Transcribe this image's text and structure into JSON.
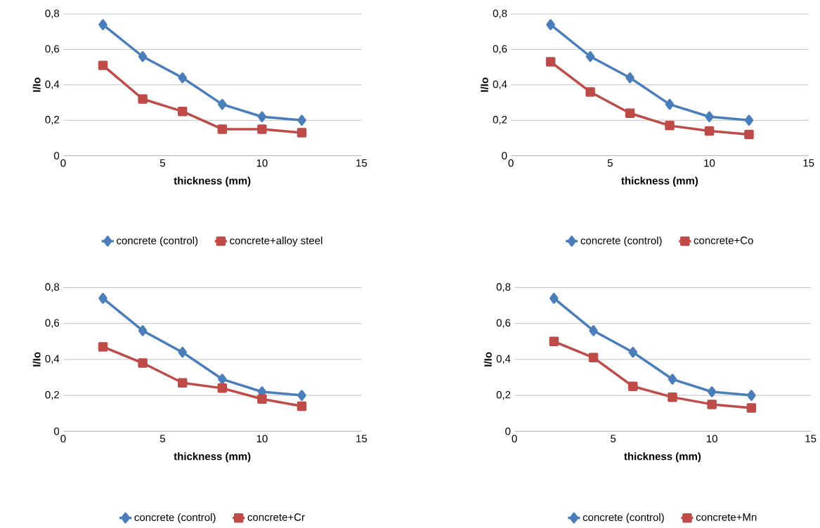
{
  "chart_data": [
    {
      "type": "line",
      "xlabel": "thickness (mm)",
      "ylabel": "I/Io",
      "x": [
        2,
        4,
        6,
        8,
        10,
        12
      ],
      "xlim": [
        0,
        15
      ],
      "xticks": [
        0,
        5,
        10,
        15
      ],
      "ylim": [
        0,
        0.8
      ],
      "yticks": [
        0,
        {
          "value": 0.2,
          "label": "0,2"
        },
        {
          "value": 0.4,
          "label": "0,4"
        },
        {
          "value": 0.6,
          "label": "0,6"
        },
        {
          "value": 0.8,
          "label": "0,8"
        }
      ],
      "grid": "y",
      "legend": "bottom",
      "series": [
        {
          "name": "concrete (control)",
          "color": "#4a7ebb",
          "marker": "diamond",
          "values": [
            0.74,
            0.56,
            0.44,
            0.29,
            0.22,
            0.2
          ]
        },
        {
          "name": "concrete+alloy steel",
          "color": "#be4b48",
          "marker": "square",
          "values": [
            0.51,
            0.32,
            0.25,
            0.15,
            0.15,
            0.13
          ]
        }
      ]
    },
    {
      "type": "line",
      "xlabel": "thickness (mm)",
      "ylabel": "I/Io",
      "x": [
        2,
        4,
        6,
        8,
        10,
        12
      ],
      "xlim": [
        0,
        15
      ],
      "xticks": [
        0,
        5,
        10,
        15
      ],
      "ylim": [
        0,
        0.8
      ],
      "yticks": [
        0,
        {
          "value": 0.2,
          "label": "0,2"
        },
        {
          "value": 0.4,
          "label": "0,4"
        },
        {
          "value": 0.6,
          "label": "0,6"
        },
        {
          "value": 0.8,
          "label": "0,8"
        }
      ],
      "grid": "y",
      "legend": "bottom",
      "series": [
        {
          "name": "concrete (control)",
          "color": "#4a7ebb",
          "marker": "diamond",
          "values": [
            0.74,
            0.56,
            0.44,
            0.29,
            0.22,
            0.2
          ]
        },
        {
          "name": "concrete+Co",
          "color": "#be4b48",
          "marker": "square",
          "values": [
            0.53,
            0.36,
            0.24,
            0.17,
            0.14,
            0.12
          ]
        }
      ]
    },
    {
      "type": "line",
      "xlabel": "thickness (mm)",
      "ylabel": "I/Io",
      "x": [
        2,
        4,
        6,
        8,
        10,
        12
      ],
      "xlim": [
        0,
        15
      ],
      "xticks": [
        0,
        5,
        10,
        15
      ],
      "ylim": [
        0,
        0.8
      ],
      "yticks": [
        0,
        {
          "value": 0.2,
          "label": "0,2"
        },
        {
          "value": 0.4,
          "label": "0,4"
        },
        {
          "value": 0.6,
          "label": "0,6"
        },
        {
          "value": 0.8,
          "label": "0,8"
        }
      ],
      "grid": "y",
      "legend": "bottom",
      "series": [
        {
          "name": "concrete (control)",
          "color": "#4a7ebb",
          "marker": "diamond",
          "values": [
            0.74,
            0.56,
            0.44,
            0.29,
            0.22,
            0.2
          ]
        },
        {
          "name": "concrete+Cr",
          "color": "#be4b48",
          "marker": "square",
          "values": [
            0.47,
            0.38,
            0.27,
            0.24,
            0.18,
            0.14
          ]
        }
      ]
    },
    {
      "type": "line",
      "xlabel": "thickness (mm)",
      "ylabel": "I/Io",
      "x": [
        2,
        4,
        6,
        8,
        10,
        12
      ],
      "xlim": [
        0,
        15
      ],
      "xticks": [
        0,
        5,
        10,
        15
      ],
      "ylim": [
        0,
        0.8
      ],
      "yticks": [
        0,
        {
          "value": 0.2,
          "label": "0,2"
        },
        {
          "value": 0.4,
          "label": "0,4"
        },
        {
          "value": 0.6,
          "label": "0,6"
        },
        {
          "value": 0.8,
          "label": "0,8"
        }
      ],
      "grid": "y",
      "legend": "bottom",
      "series": [
        {
          "name": "concrete (control)",
          "color": "#4a7ebb",
          "marker": "diamond",
          "values": [
            0.74,
            0.56,
            0.44,
            0.29,
            0.22,
            0.2
          ]
        },
        {
          "name": "concrete+Mn",
          "color": "#be4b48",
          "marker": "square",
          "values": [
            0.5,
            0.41,
            0.25,
            0.19,
            0.15,
            0.13
          ]
        }
      ]
    }
  ]
}
